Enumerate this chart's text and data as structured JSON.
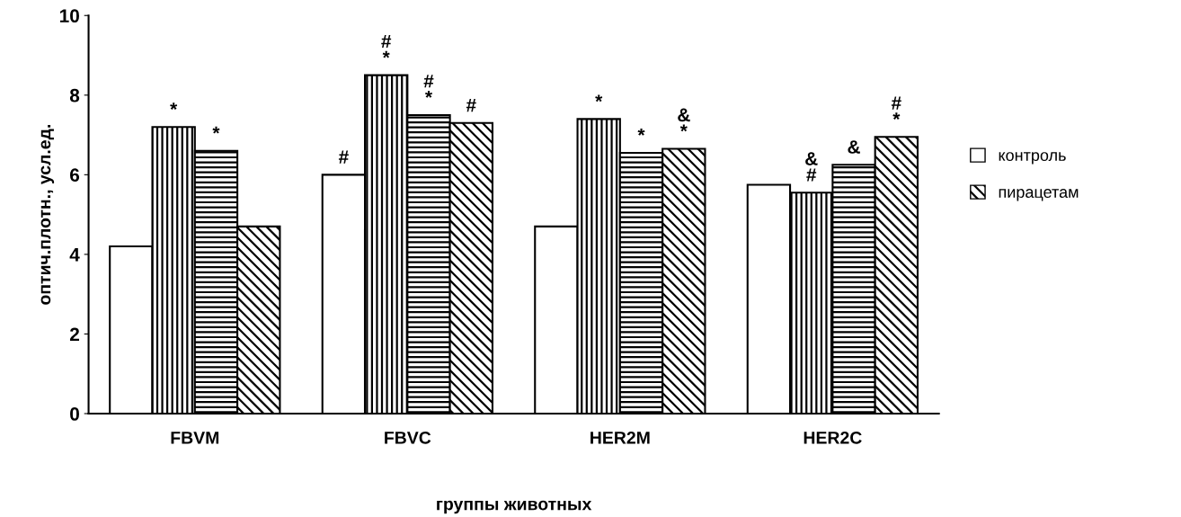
{
  "chart_data": {
    "type": "bar",
    "xlabel": "группы животных",
    "ylabel": "оптич.плотн., усл.ед.",
    "categories": [
      "FBVM",
      "FBVC",
      "HER2M",
      "HER2C"
    ],
    "series": [
      {
        "name": "контроль",
        "color": "#ffffff",
        "values": [
          4.2,
          6.0,
          4.7,
          5.75
        ],
        "value_labels": [
          null,
          "#",
          null,
          null
        ]
      },
      {
        "color": "#000000",
        "values": [
          7.2,
          8.5,
          7.4,
          5.55
        ],
        "value_labels": [
          "*",
          "#\n*",
          "*",
          "&\n#"
        ]
      },
      {
        "color": "#000000",
        "values": [
          6.6,
          7.5,
          6.55,
          6.25
        ],
        "value_labels": [
          "*",
          "#\n*",
          "*",
          "&"
        ]
      },
      {
        "name": "пирацетам",
        "color": "#000000",
        "values": [
          4.7,
          7.3,
          6.65,
          6.95
        ],
        "value_labels": [
          null,
          "#",
          "&\n*",
          "#\n*"
        ]
      }
    ],
    "ylim": [
      0,
      10
    ],
    "yticks": [
      0,
      2,
      4,
      6,
      8,
      10
    ],
    "grid": false,
    "legend": "right"
  }
}
